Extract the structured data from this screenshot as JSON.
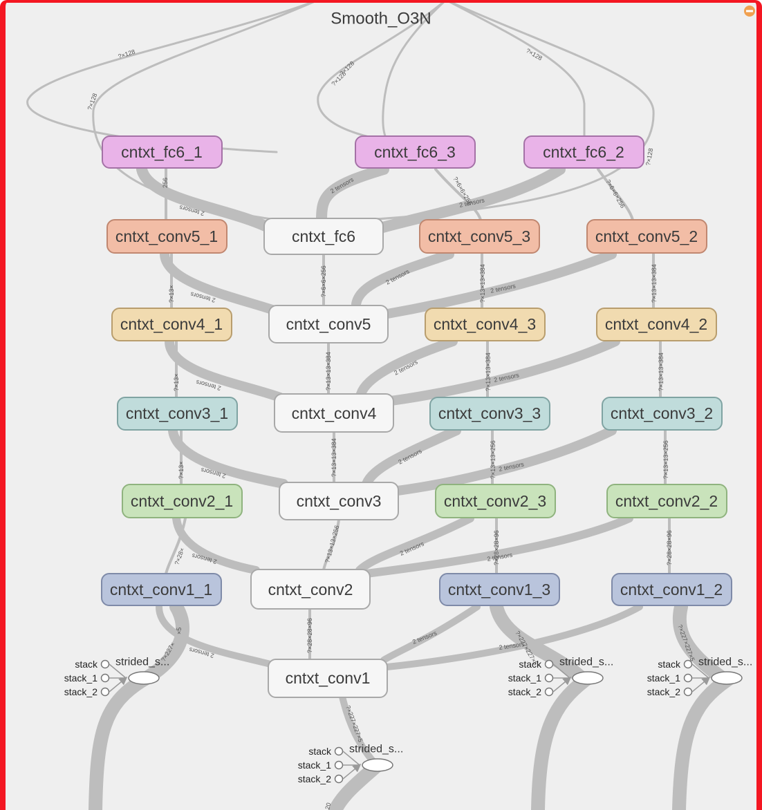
{
  "title": "Smooth_O3N",
  "collapse_icon": "minus-circle-icon",
  "colors": {
    "frame_border": "#f41722",
    "canvas": "#efefef",
    "edge": "#bdbdbd",
    "collapse": "#f0a050",
    "fc6_fill": "#e9b3e8",
    "fc6_stroke": "#a471a6",
    "conv5_fill": "#f2bda6",
    "conv5_stroke": "#c08770",
    "conv4_fill": "#f1dbb0",
    "conv4_stroke": "#b89d6d",
    "conv3_fill": "#c0dcdb",
    "conv3_stroke": "#7fa3a2",
    "conv2_fill": "#c9e3bb",
    "conv2_stroke": "#8fb37e",
    "conv1_fill": "#b9c4dc",
    "conv1_stroke": "#7e8aa8",
    "shared_fill": "#f6f6f6",
    "shared_stroke": "#a8a8a8"
  },
  "nodes": {
    "fc6_1": "cntxt_fc6_1",
    "fc6_3": "cntxt_fc6_3",
    "fc6_2": "cntxt_fc6_2",
    "conv5_1": "cntxt_conv5_1",
    "fc6": "cntxt_fc6",
    "conv5_3": "cntxt_conv5_3",
    "conv5_2": "cntxt_conv5_2",
    "conv4_1": "cntxt_conv4_1",
    "conv5": "cntxt_conv5",
    "conv4_3": "cntxt_conv4_3",
    "conv4_2": "cntxt_conv4_2",
    "conv3_1": "cntxt_conv3_1",
    "conv4": "cntxt_conv4",
    "conv3_3": "cntxt_conv3_3",
    "conv3_2": "cntxt_conv3_2",
    "conv2_1": "cntxt_conv2_1",
    "conv3": "cntxt_conv3",
    "conv2_3": "cntxt_conv2_3",
    "conv2_2": "cntxt_conv2_2",
    "conv1_1": "cntxt_conv1_1",
    "conv2": "cntxt_conv2",
    "conv1_3": "cntxt_conv1_3",
    "conv1_2": "cntxt_conv1_2",
    "conv1": "cntxt_conv1"
  },
  "edge_labels": {
    "e128a": "?×128",
    "e128b": "?×128",
    "e128c": "?×128",
    "e128d": "?×128",
    "e128e": "?×128",
    "e128f": "?×128",
    "t_fc6_1": "2 tensors",
    "t_fc6_3": "2 tensors",
    "t_fc6_2": "2 tensors",
    "s256_1": "256",
    "s6x6_3": "?×6×6×256",
    "s6x6_2": "?×6×6×256",
    "c5_shared": "?×6×6×256",
    "t_c5_1": "2 tensors",
    "t_c5_3": "2 tensors",
    "t_c5_2": "2 tensors",
    "s13_1": "?×13×",
    "s13_3": "?×13×13×384",
    "s13_2": "?×13×13×384",
    "c4_shared": "?×13×13×384",
    "t_c4_1": "2 tensors",
    "t_c4_3": "2 tensors",
    "t_c4_2": "2 tensors",
    "s13b_1": "?×13×",
    "s13b_3": "?×13×13×384",
    "s13b_2": "?×13×13×384",
    "c3_shared": "?×13×13×384",
    "t_c3_1": "2 tensors",
    "t_c3_3": "2 tensors",
    "t_c3_2": "2 tensors",
    "s13c_1": "?×13×",
    "s13c_3": "?×13×13×256",
    "s13c_2": "?×13×13×256",
    "c2_shared": "?×13×13×256",
    "t_c2_1": "2 tensors",
    "t_c2_3": "2 tensors",
    "t_c2_2": "2 tensors",
    "s28_1": "?×28×",
    "s28_3": "?×28×28×96",
    "s28_2": "?×28×28×96",
    "c1_shared": "?×28×28×96",
    "t_c1_1": "2 tensors",
    "t_c1_3": "2 tensors",
    "t_c1_2": "2 tensors",
    "s227_1": "?×227×",
    "s227_1b": "×5",
    "s227_3": "?×227×227×5",
    "s227_2": "?×227×227×5",
    "c0_shared": "?×227×227×5",
    "bottom": "20"
  },
  "strided_groups": [
    {
      "op": "strided_s...",
      "ports": [
        "stack",
        "stack_1",
        "stack_2"
      ]
    },
    {
      "op": "strided_s...",
      "ports": [
        "stack",
        "stack_1",
        "stack_2"
      ]
    },
    {
      "op": "strided_s...",
      "ports": [
        "stack",
        "stack_1",
        "stack_2"
      ]
    },
    {
      "op": "strided_s...",
      "ports": [
        "stack",
        "stack_1",
        "stack_2"
      ]
    }
  ]
}
